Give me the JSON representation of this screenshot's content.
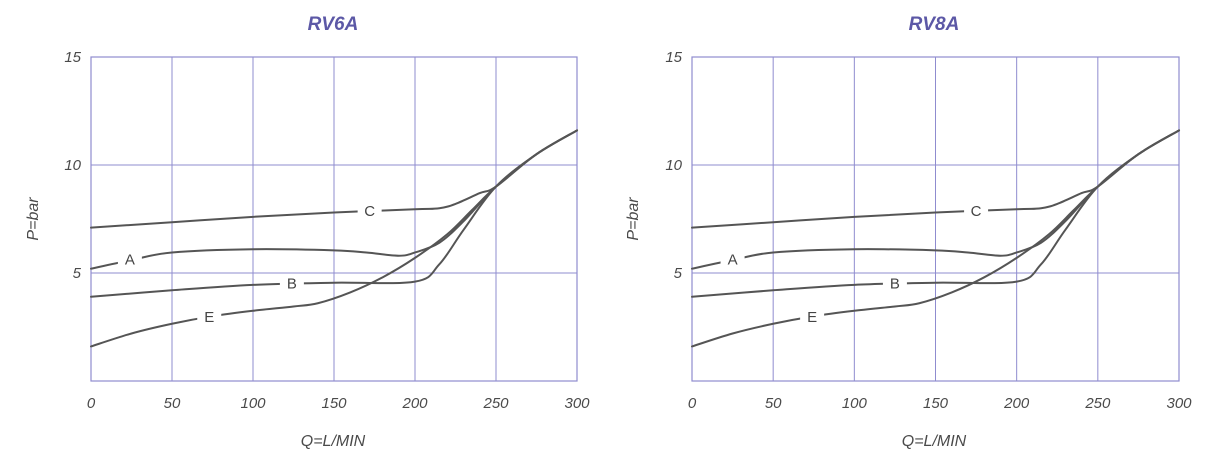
{
  "chart_data": [
    {
      "type": "line",
      "title": "RV6A",
      "xlabel": "Q=L/MIN",
      "ylabel": "P=bar",
      "xlim": [
        0,
        300
      ],
      "ylim": [
        0,
        15
      ],
      "x_ticks": [
        0,
        50,
        100,
        150,
        200,
        250,
        300
      ],
      "y_ticks": [
        5,
        10,
        15
      ],
      "grid": true,
      "series": [
        {
          "name": "C",
          "x": [
            0,
            50,
            100,
            150,
            200,
            215,
            225,
            240,
            250,
            275,
            300
          ],
          "y": [
            7.1,
            7.35,
            7.6,
            7.8,
            7.95,
            8.0,
            8.2,
            8.7,
            9.0,
            10.5,
            11.6
          ],
          "label_at": [
            172,
            7.85
          ]
        },
        {
          "name": "A",
          "x": [
            0,
            25,
            50,
            100,
            150,
            170,
            190,
            200,
            215,
            230,
            250,
            275,
            300
          ],
          "y": [
            5.2,
            5.6,
            5.95,
            6.1,
            6.05,
            5.95,
            5.8,
            5.95,
            6.4,
            7.4,
            9.0,
            10.5,
            11.6
          ],
          "label_at": [
            24,
            5.6
          ]
        },
        {
          "name": "B",
          "x": [
            0,
            50,
            100,
            150,
            200,
            215,
            230,
            250,
            275,
            300
          ],
          "y": [
            3.9,
            4.2,
            4.45,
            4.55,
            4.6,
            5.4,
            7.0,
            9.0,
            10.5,
            11.6
          ],
          "label_at": [
            124,
            4.5
          ]
        },
        {
          "name": "E",
          "x": [
            0,
            25,
            50,
            75,
            100,
            125,
            140,
            160,
            180,
            200,
            220,
            235,
            250,
            275,
            300
          ],
          "y": [
            1.6,
            2.2,
            2.65,
            3.0,
            3.25,
            3.45,
            3.6,
            4.1,
            4.8,
            5.7,
            6.8,
            7.9,
            9.0,
            10.5,
            11.6
          ],
          "label_at": [
            73,
            2.95
          ]
        }
      ]
    },
    {
      "type": "line",
      "title": "RV8A",
      "xlabel": "Q=L/MIN",
      "ylabel": "P=bar",
      "xlim": [
        0,
        300
      ],
      "ylim": [
        0,
        15
      ],
      "x_ticks": [
        0,
        50,
        100,
        150,
        200,
        250,
        300
      ],
      "y_ticks": [
        5,
        10,
        15
      ],
      "grid": true,
      "series": [
        {
          "name": "C",
          "x": [
            0,
            50,
            100,
            150,
            200,
            215,
            225,
            240,
            250,
            275,
            300
          ],
          "y": [
            7.1,
            7.35,
            7.6,
            7.8,
            7.95,
            8.0,
            8.2,
            8.7,
            9.0,
            10.5,
            11.6
          ],
          "label_at": [
            175,
            7.85
          ]
        },
        {
          "name": "A",
          "x": [
            0,
            25,
            50,
            100,
            150,
            170,
            190,
            200,
            215,
            230,
            250,
            275,
            300
          ],
          "y": [
            5.2,
            5.6,
            5.95,
            6.1,
            6.05,
            5.95,
            5.8,
            5.95,
            6.4,
            7.4,
            9.0,
            10.5,
            11.6
          ],
          "label_at": [
            25,
            5.6
          ]
        },
        {
          "name": "B",
          "x": [
            0,
            50,
            100,
            150,
            200,
            215,
            230,
            250,
            275,
            300
          ],
          "y": [
            3.9,
            4.2,
            4.45,
            4.55,
            4.6,
            5.4,
            7.0,
            9.0,
            10.5,
            11.6
          ],
          "label_at": [
            125,
            4.5
          ]
        },
        {
          "name": "E",
          "x": [
            0,
            25,
            50,
            75,
            100,
            125,
            140,
            160,
            180,
            200,
            220,
            235,
            250,
            275,
            300
          ],
          "y": [
            1.6,
            2.2,
            2.65,
            3.0,
            3.25,
            3.45,
            3.6,
            4.1,
            4.8,
            5.7,
            6.8,
            7.9,
            9.0,
            10.5,
            11.6
          ],
          "label_at": [
            74,
            2.95
          ]
        }
      ]
    }
  ]
}
